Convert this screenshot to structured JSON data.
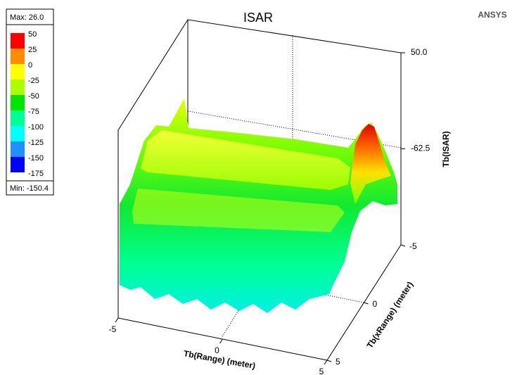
{
  "chart_data": {
    "type": "surface3d",
    "title": "ISAR",
    "brand": "ANSYS",
    "legend": {
      "max_label": "Max: 26.0",
      "min_label": "Min: -150.4",
      "levels": [
        50,
        25,
        0,
        -25,
        -50,
        -75,
        -100,
        -125,
        -150,
        -175
      ],
      "colors": [
        "#ff0000",
        "#ff8c00",
        "#ffff00",
        "#aaff00",
        "#00e600",
        "#00ff96",
        "#00ffff",
        "#1e90ff",
        "#0000ff"
      ]
    },
    "xlabel": "Tb(Range) (meter)",
    "ylabel": "Tb(xRange) (meter)",
    "zlabel": "Tb(ISAR)",
    "xlim": [
      -5,
      5
    ],
    "xticks": [
      -5,
      0,
      5
    ],
    "ylim": [
      -5,
      5
    ],
    "yticks": [
      -5,
      0,
      5
    ],
    "zlim": [
      -175,
      50
    ],
    "zticks": [
      {
        "value": 50,
        "label": "50.0"
      },
      -62.5
    ]
  }
}
